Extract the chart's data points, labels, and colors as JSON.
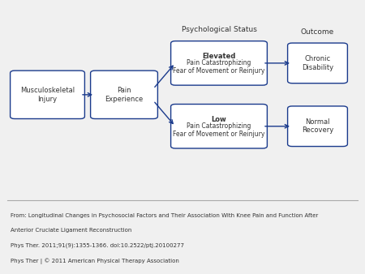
{
  "bg_color": "#f0f0f0",
  "diagram_bg": "#ffffff",
  "box_edge_color": "#1a3a8c",
  "box_fill_color": "#ffffff",
  "arrow_color": "#1a3a8c",
  "text_color": "#333333",
  "separator_color": "#aaaaaa",
  "box1_label": "Musculoskeletal\nInjury",
  "box2_label": "Pain\nExperience",
  "box3_line1": "Elevated",
  "box3_line2": "Pain Catastrophizing\nFear of Movement or Reinjury",
  "box4_line1": "Low",
  "box4_line2": "Pain Catastrophizing\nFear of Movement or Reinjury",
  "box5_label": "Chronic\nDisability",
  "box6_label": "Normal\nRecovery",
  "label_psych": "Psychological Status",
  "label_outcome": "Outcome",
  "footer_line1": "From: Longitudinal Changes in Psychosocial Factors and Their Association With Knee Pain and Function After",
  "footer_line2": "Anterior Cruciate Ligament Reconstruction",
  "footer_line3": "Phys Ther. 2011;91(9):1355-1366. doi:10.2522/ptj.20100277",
  "footer_line4": "Phys Ther | © 2011 American Physical Therapy Association"
}
